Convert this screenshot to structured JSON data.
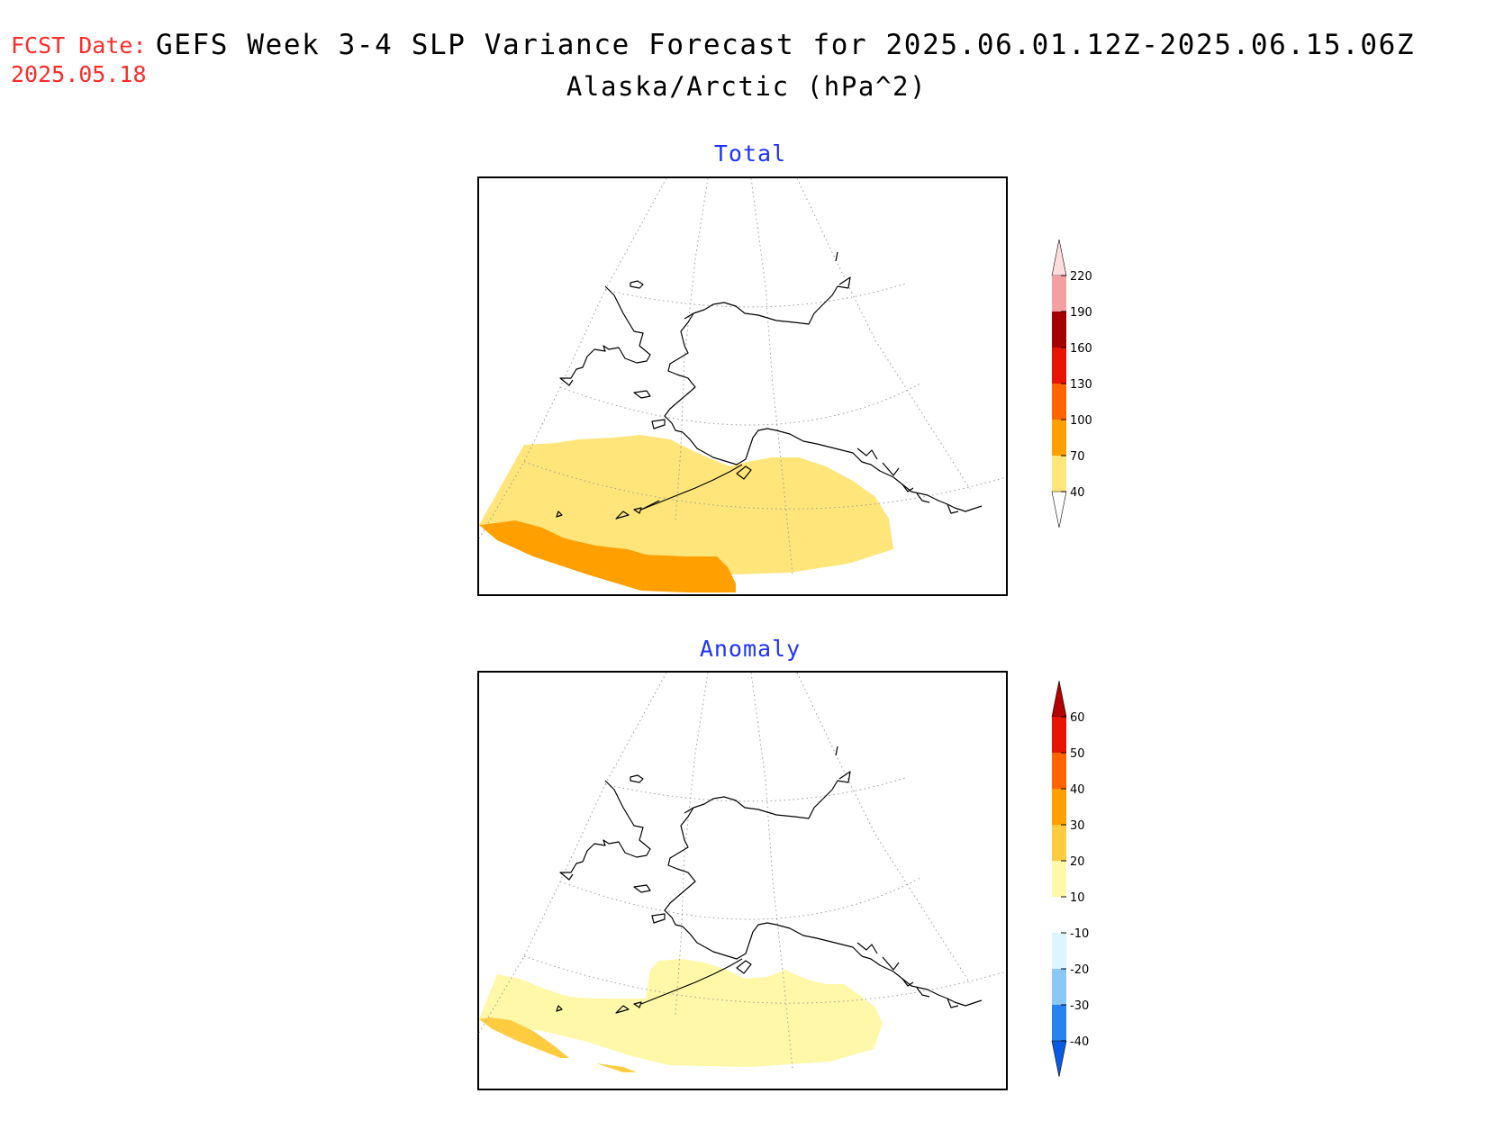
{
  "header": {
    "fcst_label": "FCST Date:",
    "fcst_date": "2025.05.18",
    "title": "GEFS Week 3-4 SLP Variance Forecast for 2025.06.01.12Z-2025.06.15.06Z",
    "subtitle": "Alaska/Arctic (hPa^2)"
  },
  "panels": [
    {
      "title": "Total",
      "colorbar": {
        "levels": [
          "40",
          "70",
          "100",
          "130",
          "160",
          "190",
          "220"
        ],
        "colors": [
          "#ffe57a",
          "#ffa000",
          "#ff6400",
          "#e61400",
          "#a50000",
          "#f5a0a0",
          "#ffdcdc"
        ],
        "arrow_top": "#ffdcdc",
        "arrow_bottom": "#ffffff"
      }
    },
    {
      "title": "Anomaly",
      "colorbar": {
        "levels": [
          "-40",
          "-30",
          "-20",
          "-10",
          "10",
          "20",
          "30",
          "40",
          "50",
          "60"
        ],
        "colors": [
          "#0a5ae6",
          "#2882f0",
          "#8cc8f5",
          "#dcf5ff",
          "#ffffff",
          "#fff8a8",
          "#ffcc40",
          "#ffa000",
          "#ff6400",
          "#e61400",
          "#b40000"
        ],
        "arrow_top": "#b40000",
        "arrow_bottom": "#0a5ae6"
      }
    }
  ],
  "colors": {
    "title_red": "#ff2a2a",
    "panel_title_blue": "#1d32ff",
    "coastline": "#000000",
    "grid": "#9a9a9a"
  }
}
